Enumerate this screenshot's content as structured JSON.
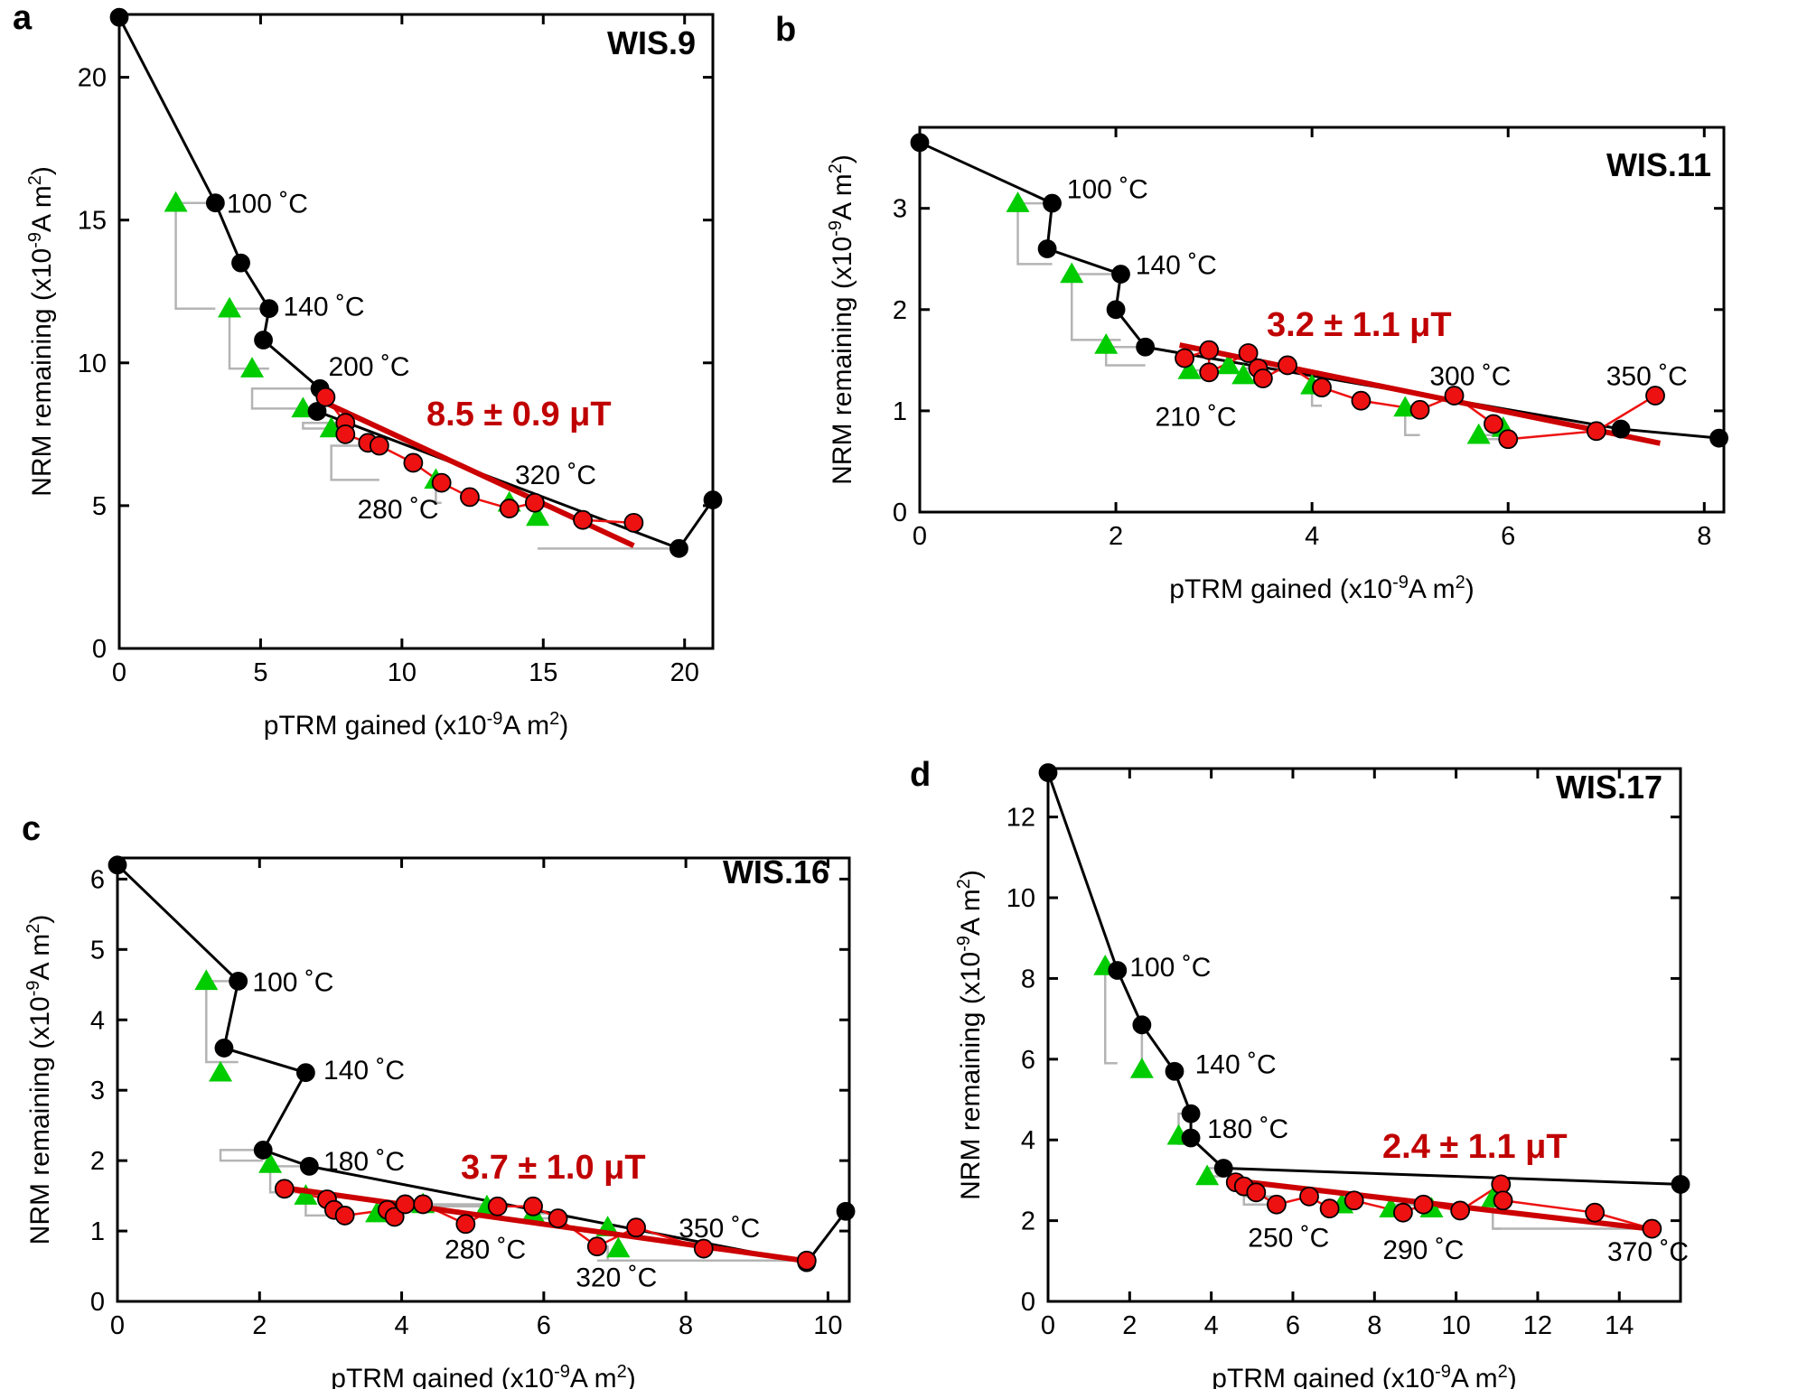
{
  "colors": {
    "nrm_series": "#000000",
    "ptrm_check": "#00cc00",
    "check_step": "#b4b4b4",
    "fit_points": "#ee1111",
    "fit_line": "#cc0000",
    "result_text": "#c00000"
  },
  "chart_data": [
    {
      "type": "scatter",
      "panel": "a",
      "title": "WIS.9",
      "xlabel": "pTRM gained (x10-9 A m2)",
      "xlabel_main": "pTRM gained (x10",
      "xlabel_exp": "-9",
      "xlabel_unit": "A m",
      "xlabel_sq": "2",
      "xlabel_close": ")",
      "ylabel": "NRM remaining (x10-9 A m2)",
      "ylabel_main": "NRM remaining (x10",
      "ylabel_exp": "-9",
      "ylabel_unit": "A m",
      "ylabel_sq": "2",
      "ylabel_close": ")",
      "xlim": [
        0,
        21
      ],
      "ylim": [
        0,
        22.2
      ],
      "xticks": [
        0,
        5,
        10,
        15,
        20
      ],
      "yticks": [
        0,
        5,
        10,
        15,
        20
      ],
      "result": "8.5 ± 0.9 μT",
      "series": [
        {
          "name": "NRM-pTRM",
          "x": [
            0,
            3.4,
            4.3,
            5.3,
            5.1,
            7.1,
            7.0,
            19.8,
            21.0
          ],
          "y": [
            22.1,
            15.6,
            13.5,
            11.9,
            10.8,
            9.1,
            8.3,
            3.5,
            5.2
          ]
        },
        {
          "name": "pTRM checks",
          "x": [
            2.0,
            3.9,
            4.7,
            6.5,
            7.5,
            11.2,
            13.8,
            14.8
          ],
          "y": [
            15.6,
            11.9,
            9.8,
            8.4,
            7.7,
            5.9,
            5.1,
            4.6
          ]
        },
        {
          "name": "Fit points",
          "x": [
            7.3,
            8.0,
            8.0,
            8.8,
            9.2,
            10.4,
            11.4,
            12.4,
            13.8,
            14.7,
            16.4,
            18.2
          ],
          "y": [
            8.8,
            7.9,
            7.5,
            7.2,
            7.1,
            6.5,
            5.8,
            5.3,
            4.9,
            5.1,
            4.5,
            4.4
          ]
        }
      ],
      "check_steps": [
        [
          3.4,
          15.6,
          2.0,
          11.9
        ],
        [
          5.3,
          11.9,
          3.9,
          9.8
        ],
        [
          7.1,
          9.1,
          4.7,
          8.4
        ],
        [
          8.0,
          7.9,
          6.5,
          7.7
        ],
        [
          9.2,
          7.1,
          7.5,
          5.9
        ],
        [
          11.4,
          5.8,
          11.2,
          5.1
        ],
        [
          14.7,
          5.1,
          14.8,
          4.6
        ],
        [
          19.8,
          3.5,
          14.8,
          3.5
        ]
      ],
      "fit_line": {
        "x": [
          7.3,
          18.2
        ],
        "y": [
          8.6,
          3.6
        ]
      },
      "annotations": [
        {
          "text": "100 ˚C",
          "x": 3.8,
          "y": 15.6,
          "anchor": "start"
        },
        {
          "text": "140 ˚C",
          "x": 5.8,
          "y": 12.0,
          "anchor": "start"
        },
        {
          "text": "200 ˚C",
          "x": 7.4,
          "y": 9.9,
          "anchor": "start"
        },
        {
          "text": "280 ˚C",
          "x": 11.3,
          "y": 4.9,
          "anchor": "end"
        },
        {
          "text": "320 ˚C",
          "x": 14.0,
          "y": 6.1,
          "anchor": "start"
        }
      ]
    },
    {
      "type": "scatter",
      "panel": "b",
      "title": "WIS.11",
      "xlabel": "pTRM gained (x10-9 A m2)",
      "xlabel_main": "pTRM gained (x10",
      "xlabel_exp": "-9",
      "xlabel_unit": "A m",
      "xlabel_sq": "2",
      "xlabel_close": ")",
      "ylabel": "NRM remaining (x10-9 A m2)",
      "ylabel_main": "NRM remaining (x10",
      "ylabel_exp": "-9",
      "ylabel_unit": "A m",
      "ylabel_sq": "2",
      "ylabel_close": ")",
      "xlim": [
        0,
        8.2
      ],
      "ylim": [
        0,
        3.8
      ],
      "xticks": [
        0,
        2,
        4,
        6,
        8
      ],
      "yticks": [
        0,
        1,
        2,
        3
      ],
      "result": "3.2 ± 1.1 μT",
      "series": [
        {
          "name": "NRM-pTRM",
          "x": [
            0,
            1.35,
            1.3,
            2.05,
            2.0,
            2.3,
            7.15,
            8.15
          ],
          "y": [
            3.65,
            3.05,
            2.6,
            2.35,
            2.0,
            1.63,
            0.82,
            0.73
          ]
        },
        {
          "name": "pTRM checks",
          "x": [
            1.0,
            1.55,
            1.9,
            2.75,
            3.15,
            3.3,
            4.0,
            4.95,
            5.7,
            5.95
          ],
          "y": [
            3.05,
            2.35,
            1.65,
            1.4,
            1.45,
            1.35,
            1.25,
            1.03,
            0.76,
            0.83
          ]
        },
        {
          "name": "Fit points",
          "x": [
            2.7,
            2.95,
            2.95,
            3.35,
            3.45,
            3.5,
            3.75,
            4.1,
            4.5,
            5.1,
            5.45,
            5.85,
            6.0,
            6.9,
            7.5
          ],
          "y": [
            1.52,
            1.6,
            1.38,
            1.57,
            1.42,
            1.32,
            1.45,
            1.23,
            1.1,
            1.01,
            1.15,
            0.87,
            0.72,
            0.8,
            1.15
          ]
        }
      ],
      "check_steps": [
        [
          1.35,
          3.05,
          1.0,
          2.45
        ],
        [
          2.05,
          2.35,
          1.55,
          1.7
        ],
        [
          2.3,
          1.63,
          1.9,
          1.45
        ],
        [
          2.95,
          1.6,
          2.75,
          1.4
        ],
        [
          3.45,
          1.42,
          3.3,
          1.3
        ],
        [
          4.1,
          1.23,
          4.0,
          1.05
        ],
        [
          5.1,
          1.01,
          4.95,
          0.76
        ],
        [
          6.0,
          0.72,
          5.7,
          0.76
        ]
      ],
      "fit_line": {
        "x": [
          2.65,
          7.55
        ],
        "y": [
          1.65,
          0.68
        ]
      },
      "annotations": [
        {
          "text": "100 ˚C",
          "x": 1.5,
          "y": 3.2,
          "anchor": "start"
        },
        {
          "text": "140 ˚C",
          "x": 2.2,
          "y": 2.45,
          "anchor": "start"
        },
        {
          "text": "210 ˚C",
          "x": 2.4,
          "y": 0.95,
          "anchor": "start"
        },
        {
          "text": "300 ˚C",
          "x": 5.2,
          "y": 1.35,
          "anchor": "start"
        },
        {
          "text": "350 ˚C",
          "x": 7.0,
          "y": 1.35,
          "anchor": "start"
        }
      ]
    },
    {
      "type": "scatter",
      "panel": "c",
      "title": "WIS.16",
      "xlabel": "pTRM gained (x10-9 A m2)",
      "xlabel_main": "pTRM gained (x10",
      "xlabel_exp": "-9",
      "xlabel_unit": "A m",
      "xlabel_sq": "2",
      "xlabel_close": ")",
      "ylabel": "NRM remaining (x10-9 A m2)",
      "ylabel_main": "NRM remaining (x10",
      "ylabel_exp": "-9",
      "ylabel_unit": "A m",
      "ylabel_sq": "2",
      "ylabel_close": ")",
      "xlim": [
        0,
        10.3
      ],
      "ylim": [
        0,
        6.3
      ],
      "xticks": [
        0,
        2,
        4,
        6,
        8,
        10
      ],
      "yticks": [
        0,
        1,
        2,
        3,
        4,
        5,
        6
      ],
      "result": "3.7 ± 1.0 μT",
      "series": [
        {
          "name": "NRM-pTRM",
          "x": [
            0,
            1.7,
            1.5,
            2.65,
            2.05,
            2.7,
            9.7,
            10.25
          ],
          "y": [
            6.2,
            4.55,
            3.6,
            3.25,
            2.15,
            1.92,
            0.55,
            1.28
          ]
        },
        {
          "name": "pTRM checks",
          "x": [
            1.25,
            1.45,
            2.15,
            2.65,
            3.65,
            4.3,
            5.2,
            5.85,
            6.9,
            7.05
          ],
          "y": [
            4.55,
            3.25,
            1.95,
            1.5,
            1.25,
            1.38,
            1.35,
            1.25,
            1.05,
            0.75
          ]
        },
        {
          "name": "Fit points",
          "x": [
            2.35,
            2.95,
            3.05,
            3.2,
            3.8,
            3.9,
            4.05,
            4.3,
            4.9,
            5.35,
            5.85,
            6.2,
            6.75,
            7.3,
            8.25,
            9.7
          ],
          "y": [
            1.6,
            1.45,
            1.3,
            1.22,
            1.3,
            1.2,
            1.38,
            1.38,
            1.1,
            1.35,
            1.35,
            1.18,
            0.78,
            1.05,
            0.75,
            0.58
          ]
        }
      ],
      "check_steps": [
        [
          1.7,
          4.55,
          1.25,
          3.4
        ],
        [
          2.05,
          2.15,
          1.45,
          2.0
        ],
        [
          2.7,
          1.92,
          2.15,
          1.55
        ],
        [
          3.2,
          1.22,
          2.65,
          1.5
        ],
        [
          4.3,
          1.38,
          3.65,
          1.38
        ],
        [
          5.35,
          1.35,
          4.3,
          1.38
        ],
        [
          6.2,
          1.18,
          5.85,
          1.25
        ],
        [
          6.75,
          0.78,
          6.9,
          0.58
        ],
        [
          9.7,
          0.58,
          6.9,
          0.58
        ]
      ],
      "fit_line": {
        "x": [
          2.3,
          9.8
        ],
        "y": [
          1.62,
          0.56
        ]
      },
      "annotations": [
        {
          "text": "100 ˚C",
          "x": 1.9,
          "y": 4.55,
          "anchor": "start"
        },
        {
          "text": "140 ˚C",
          "x": 2.9,
          "y": 3.3,
          "anchor": "start"
        },
        {
          "text": "180 ˚C",
          "x": 2.9,
          "y": 2.0,
          "anchor": "start"
        },
        {
          "text": "280 ˚C",
          "x": 5.75,
          "y": 0.75,
          "anchor": "end"
        },
        {
          "text": "320 ˚C",
          "x": 6.45,
          "y": 0.35,
          "anchor": "start"
        },
        {
          "text": "350 ˚C",
          "x": 7.9,
          "y": 1.05,
          "anchor": "start"
        }
      ]
    },
    {
      "type": "scatter",
      "panel": "d",
      "title": "WIS.17",
      "xlabel": "pTRM gained (x10-9 A m2)",
      "xlabel_main": "pTRM gained (x10",
      "xlabel_exp": "-9",
      "xlabel_unit": "A m",
      "xlabel_sq": "2",
      "xlabel_close": ")",
      "ylabel": "NRM remaining (x10-9 A m2)",
      "ylabel_main": "NRM remaining (x10",
      "ylabel_exp": "-9",
      "ylabel_unit": "A m",
      "ylabel_sq": "2",
      "ylabel_close": ")",
      "xlim": [
        0,
        15.5
      ],
      "ylim": [
        0,
        13.2
      ],
      "xticks": [
        0,
        2,
        4,
        6,
        8,
        10,
        12,
        14
      ],
      "yticks": [
        0,
        2,
        4,
        6,
        8,
        10,
        12
      ],
      "result": "2.4 ± 1.1 μT",
      "series": [
        {
          "name": "NRM-pTRM",
          "x": [
            0,
            1.7,
            2.3,
            3.1,
            3.5,
            3.5,
            4.3,
            15.5
          ],
          "y": [
            13.1,
            8.2,
            6.85,
            5.7,
            4.65,
            4.05,
            3.3,
            2.9
          ]
        },
        {
          "name": "pTRM checks",
          "x": [
            1.4,
            2.3,
            3.2,
            3.9,
            7.2,
            8.4,
            9.4,
            10.9
          ],
          "y": [
            8.3,
            5.75,
            4.1,
            3.1,
            2.4,
            2.3,
            2.3,
            2.55
          ]
        },
        {
          "name": "Fit points",
          "x": [
            4.6,
            4.8,
            5.1,
            5.6,
            6.4,
            6.9,
            7.5,
            8.7,
            9.2,
            10.1,
            11.1,
            11.15,
            13.4,
            14.8
          ],
          "y": [
            2.95,
            2.85,
            2.7,
            2.4,
            2.6,
            2.3,
            2.5,
            2.2,
            2.4,
            2.25,
            2.9,
            2.5,
            2.2,
            1.8
          ]
        }
      ],
      "check_steps": [
        [
          1.7,
          8.2,
          1.4,
          5.9
        ],
        [
          2.3,
          6.85,
          2.3,
          5.75
        ],
        [
          3.5,
          4.65,
          3.2,
          3.9
        ],
        [
          4.3,
          3.3,
          3.9,
          3.1
        ],
        [
          5.6,
          2.4,
          4.8,
          2.6
        ],
        [
          7.5,
          2.5,
          7.2,
          2.4
        ],
        [
          9.2,
          2.4,
          8.4,
          2.3
        ],
        [
          11.1,
          2.9,
          10.9,
          1.8
        ],
        [
          14.8,
          1.8,
          10.9,
          1.8
        ]
      ],
      "fit_line": {
        "x": [
          4.5,
          14.9
        ],
        "y": [
          3.0,
          1.78
        ]
      },
      "annotations": [
        {
          "text": "100 ˚C",
          "x": 2.0,
          "y": 8.3,
          "anchor": "start"
        },
        {
          "text": "140 ˚C",
          "x": 3.6,
          "y": 5.9,
          "anchor": "start"
        },
        {
          "text": "180 ˚C",
          "x": 3.9,
          "y": 4.3,
          "anchor": "start"
        },
        {
          "text": "250 ˚C",
          "x": 4.9,
          "y": 1.6,
          "anchor": "start"
        },
        {
          "text": "290 ˚C",
          "x": 8.2,
          "y": 1.3,
          "anchor": "start"
        },
        {
          "text": "370 ˚C",
          "x": 15.7,
          "y": 1.25,
          "anchor": "end"
        }
      ]
    }
  ]
}
